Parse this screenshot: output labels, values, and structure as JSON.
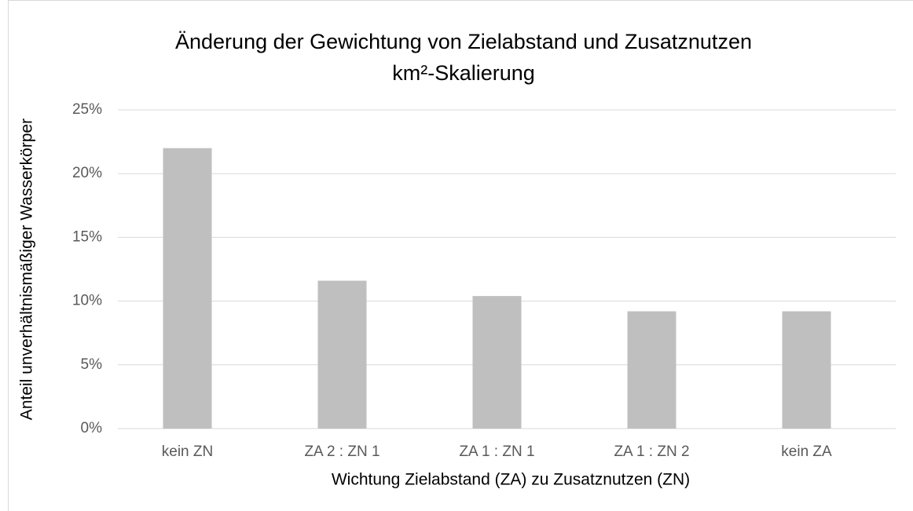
{
  "chart_data": {
    "type": "bar",
    "title": "Änderung der Gewichtung von Zielabstand und Zusatznutzen",
    "subtitle": "km²-Skalierung",
    "x_label": "Wichtung Zielabstand (ZA) zu Zusatznutzen  (ZN)",
    "y_label": "Anteil unverhältnismäßiger Wasserkörper",
    "categories": [
      "kein ZN",
      "ZA 2 : ZN 1",
      "ZA 1 : ZN 1",
      "ZA 1 : ZN 2",
      "kein ZA"
    ],
    "values": [
      22.0,
      11.6,
      10.4,
      9.2,
      9.2
    ],
    "color": "#bfbfbf",
    "ylim": [
      0,
      25
    ],
    "yticks": [
      {
        "value": 0,
        "label": "0%"
      },
      {
        "value": 5,
        "label": "5%"
      },
      {
        "value": 10,
        "label": "10%"
      },
      {
        "value": 15,
        "label": "15%"
      },
      {
        "value": 20,
        "label": "20%"
      },
      {
        "value": 25,
        "label": "25%"
      }
    ],
    "grid": true
  }
}
